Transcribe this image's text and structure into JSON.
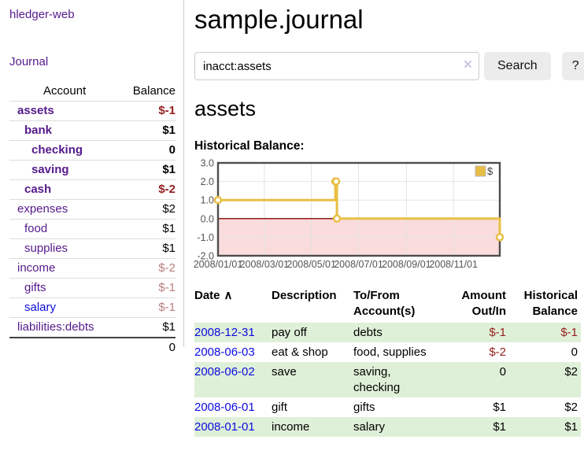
{
  "app_title": "hledger-web",
  "sidebar": {
    "journal_link": "Journal",
    "account_header": "Account",
    "balance_header": "Balance",
    "accounts": [
      {
        "name": "assets",
        "balance": "$-1"
      },
      {
        "name": "bank",
        "balance": "$1"
      },
      {
        "name": "checking",
        "balance": "0"
      },
      {
        "name": "saving",
        "balance": "$1"
      },
      {
        "name": "cash",
        "balance": "$-2"
      },
      {
        "name": "expenses",
        "balance": "$2"
      },
      {
        "name": "food",
        "balance": "$1"
      },
      {
        "name": "supplies",
        "balance": "$1"
      },
      {
        "name": "income",
        "balance": "$-2"
      },
      {
        "name": "gifts",
        "balance": "$-1"
      },
      {
        "name": "salary",
        "balance": "$-1"
      },
      {
        "name": "liabilities:debts",
        "balance": "$1"
      }
    ],
    "total": "0"
  },
  "main": {
    "title": "sample.journal",
    "search": {
      "value": "inacct:assets",
      "clear_icon": "×",
      "search_button": "Search",
      "help_button": "?"
    },
    "account_heading": "assets",
    "chart_title": "Historical Balance:"
  },
  "chart_data": {
    "type": "line",
    "step": true,
    "title": "Historical Balance",
    "series": [
      {
        "name": "$",
        "color": "#e8bf44",
        "points": [
          [
            "2008-01-01",
            1
          ],
          [
            "2008-06-01",
            2
          ],
          [
            "2008-06-02",
            2
          ],
          [
            "2008-06-03",
            0
          ],
          [
            "2008-12-31",
            -1
          ]
        ]
      }
    ],
    "ylim": [
      -2,
      3
    ],
    "yticks": [
      3.0,
      2.0,
      1.0,
      0.0,
      -1.0,
      -2.0
    ],
    "x_range": [
      "2008-01-01",
      "2008-12-31"
    ],
    "xticks": [
      "2008-01-01",
      "2008-03-01",
      "2008-05-01",
      "2008-07-01",
      "2008-09-01",
      "2008-11-01"
    ],
    "xtick_labels": [
      "2008/01/01",
      "2008/03/01",
      "2008/05/01",
      "2008/07/01",
      "2008/09/01",
      "2008/11/01"
    ],
    "legend_position": "top-right",
    "grid": true,
    "negative_fill": "#fbdcdc",
    "zero_line_color": "#8b0000"
  },
  "register": {
    "headers": {
      "date": "Date",
      "sort_indicator": "∧",
      "description": "Description",
      "accounts": "To/From Account(s)",
      "amount": "Amount Out/In",
      "balance": "Historical Balance"
    },
    "rows": [
      {
        "date": "2008-12-31",
        "description": "pay off",
        "accounts": "debts",
        "amount": "$-1",
        "balance": "$-1"
      },
      {
        "date": "2008-06-03",
        "description": "eat & shop",
        "accounts": "food, supplies",
        "amount": "$-2",
        "balance": "0"
      },
      {
        "date": "2008-06-02",
        "description": "save",
        "accounts": "saving, checking",
        "amount": "0",
        "balance": "$2"
      },
      {
        "date": "2008-06-01",
        "description": "gift",
        "accounts": "gifts",
        "amount": "$1",
        "balance": "$2"
      },
      {
        "date": "2008-01-01",
        "description": "income",
        "accounts": "salary",
        "amount": "$1",
        "balance": "$1"
      }
    ]
  },
  "colors": {
    "link_purple": "#551a8b",
    "link_blue": "#0b0bdf",
    "negative_strong": "#941f1f",
    "negative_dim": "#b97e7e",
    "row_green": "#dff0d8",
    "chart_line": "#e8bf44",
    "chart_negative_area": "#fbdcdc",
    "chart_zero_line": "#8b0000"
  }
}
